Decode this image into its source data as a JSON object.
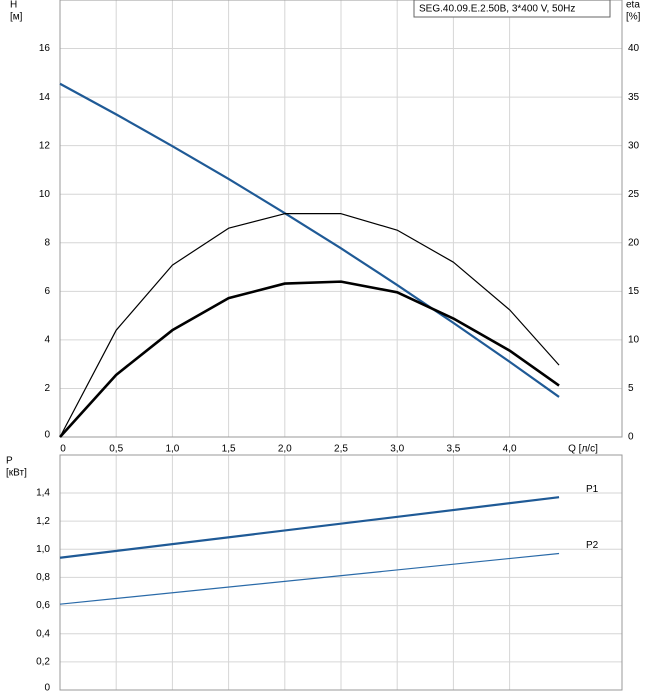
{
  "chart_data": [
    {
      "type": "line",
      "title": "SEG.40.09.E.2.50B, 3*400 V, 50Hz",
      "ylabel": [
        "H",
        "[м]"
      ],
      "y2label": [
        "eta",
        "[%]"
      ],
      "xlabel": "Q [л/с]",
      "x": [
        0,
        0.5,
        1.0,
        1.5,
        2.0,
        2.5,
        3.0,
        3.5,
        4.0,
        4.44
      ],
      "series": [
        {
          "color": "#1f5a96",
          "values": [
            14.55,
            13.29,
            11.98,
            10.63,
            9.22,
            7.77,
            6.26,
            4.7,
            3.1,
            1.65
          ]
        },
        {
          "color": "#000000",
          "axis": "y2",
          "values": [
            0,
            11.0,
            17.7,
            21.5,
            23.0,
            23.0,
            21.3,
            18.0,
            13.1,
            7.4
          ]
        },
        {
          "color": "#000000",
          "axis": "y2",
          "values": [
            0,
            6.4,
            11.0,
            14.3,
            15.8,
            16.0,
            14.9,
            12.2,
            8.9,
            5.3
          ]
        }
      ],
      "xlim": [
        0,
        5
      ],
      "xticks": [
        0,
        {
          "value": 0.5,
          "label": "0,5"
        },
        {
          "value": 1.0,
          "label": "1,0"
        },
        {
          "value": 1.5,
          "label": "1,5"
        },
        {
          "value": 2.0,
          "label": "2,0"
        },
        {
          "value": 2.5,
          "label": "2,5"
        },
        {
          "value": 3.0,
          "label": "3,0"
        },
        {
          "value": 3.5,
          "label": "3,5"
        },
        {
          "value": 4.0,
          "label": "4,0"
        }
      ],
      "ylim": [
        0,
        18
      ],
      "yticks": [
        0,
        2,
        4,
        6,
        8,
        10,
        12,
        14,
        16
      ],
      "y2lim": [
        0,
        45
      ],
      "y2ticks": [
        0,
        5,
        10,
        15,
        20,
        25,
        30,
        35,
        40
      ],
      "grid": true
    },
    {
      "type": "line",
      "ylabel": [
        "P",
        "[кВт]"
      ],
      "x": [
        0,
        4.44
      ],
      "series": [
        {
          "name": "P1",
          "color": "#1f5a96",
          "values": [
            0.94,
            1.37
          ]
        },
        {
          "name": "P2",
          "color": "#2a6aa8",
          "values": [
            0.61,
            0.97
          ]
        }
      ],
      "xlim": [
        0,
        5
      ],
      "xticks": [
        0,
        0.5,
        1.0,
        1.5,
        2.0,
        2.5,
        3.0,
        3.5,
        4.0
      ],
      "ylim": [
        0,
        1.67
      ],
      "yticks": [
        0,
        {
          "value": 0.2,
          "label": "0,2"
        },
        {
          "value": 0.4,
          "label": "0,4"
        },
        {
          "value": 0.6,
          "label": "0,6"
        },
        {
          "value": 0.8,
          "label": "0,8"
        },
        {
          "value": 1.0,
          "label": "1,0"
        },
        {
          "value": 1.2,
          "label": "1,2"
        },
        {
          "value": 1.4,
          "label": "1,4"
        }
      ],
      "grid": true
    }
  ]
}
